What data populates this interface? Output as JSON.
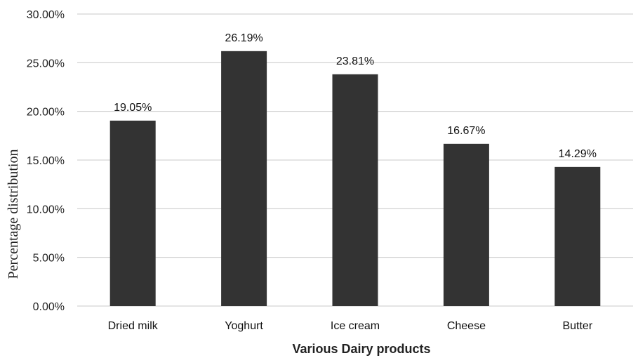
{
  "chart_data": {
    "type": "bar",
    "title": "",
    "xlabel": "Various Dairy products",
    "ylabel": "Percentage distribution",
    "categories": [
      "Dried milk",
      "Yoghurt",
      "Ice cream",
      "Cheese",
      "Butter"
    ],
    "values": [
      19.05,
      26.19,
      23.81,
      16.67,
      14.29
    ],
    "data_labels": [
      "19.05%",
      "26.19%",
      "23.81%",
      "16.67%",
      "14.29%"
    ],
    "y_ticks": [
      0,
      5,
      10,
      15,
      20,
      25,
      30
    ],
    "y_tick_labels": [
      "0.00%",
      "5.00%",
      "10.00%",
      "15.00%",
      "20.00%",
      "25.00%",
      "30.00%"
    ],
    "ylim": [
      0,
      30
    ],
    "grid": true,
    "legend": "none",
    "bar_color": "#333333",
    "grid_color": "#c8c8c8"
  }
}
